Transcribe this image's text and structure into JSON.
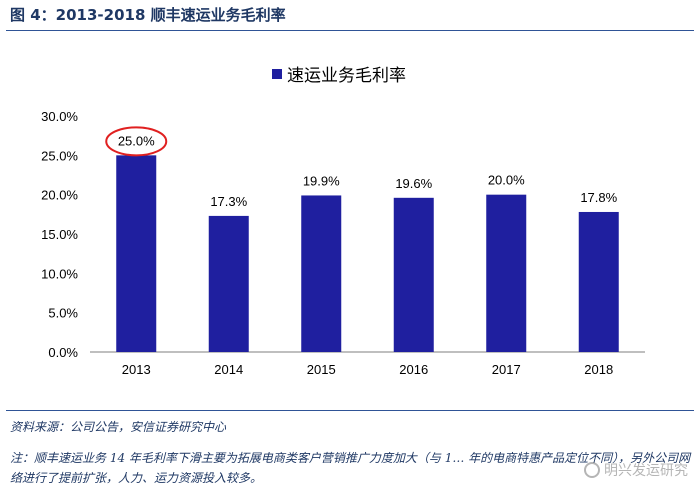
{
  "figure": {
    "title": "图 4：2013-2018 顺丰速运业务毛利率",
    "source": "资料来源：公司公告，安信证券研究中心",
    "note": "注：顺丰速运业务 14 年毛利率下滑主要为拓展电商类客户营销推广力度加大（与 1… 年的电商特惠产品定位不同），另外公司网络进行了提前扩张，人力、运力资源投入较多。",
    "watermark": "明兴发运研究"
  },
  "chart_data": {
    "type": "bar",
    "title": "速运业务毛利率",
    "legend": "速运业务毛利率",
    "categories": [
      "2013",
      "2014",
      "2015",
      "2016",
      "2017",
      "2018"
    ],
    "values": [
      25.0,
      17.3,
      19.9,
      19.6,
      20.0,
      17.8
    ],
    "labels": [
      "25.0%",
      "17.3%",
      "19.9%",
      "19.6%",
      "20.0%",
      "17.8%"
    ],
    "yticks": [
      "0.0%",
      "5.0%",
      "10.0%",
      "15.0%",
      "20.0%",
      "25.0%",
      "30.0%"
    ],
    "ylim": [
      0,
      30
    ],
    "highlight_index": 0,
    "colors": {
      "bar": "#1f1f9f",
      "highlight": "#e02020",
      "axis": "#7f7f7f",
      "text": "#000000"
    }
  }
}
